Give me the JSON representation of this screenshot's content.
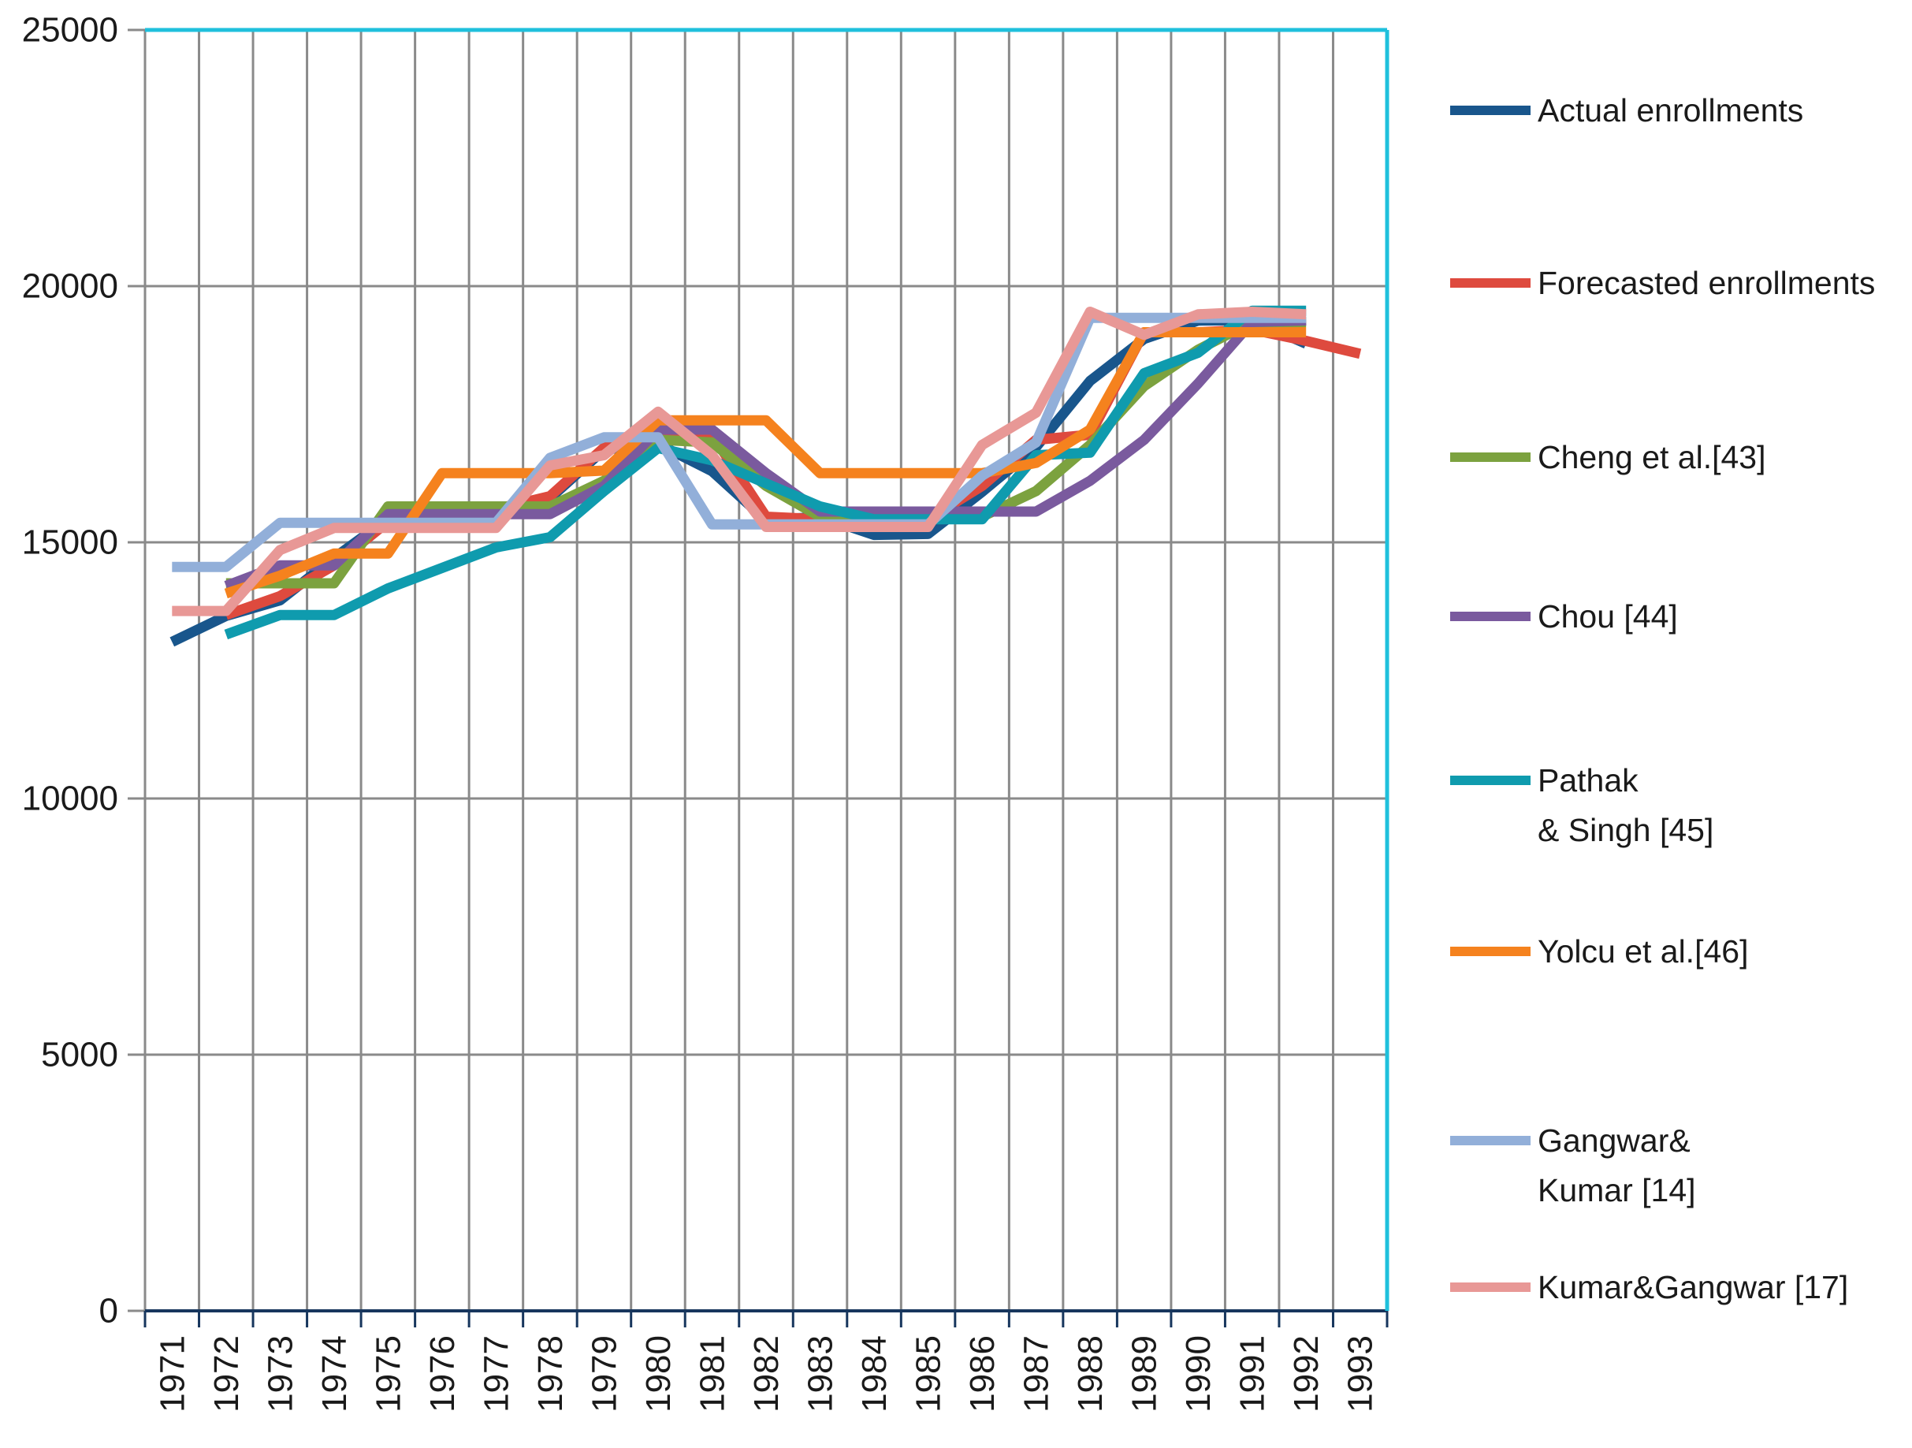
{
  "page": {
    "background": "#FFFFFF"
  },
  "y_axis": {
    "tick_labels": [
      "25000",
      "20000",
      "15000",
      "10000",
      "5000",
      "0"
    ]
  },
  "x_axis": {
    "tick_labels": [
      "1971",
      "1972",
      "1973",
      "1974",
      "1975",
      "1976",
      "1977",
      "1978",
      "1979",
      "1980",
      "1981",
      "1982",
      "1983",
      "1984",
      "1985",
      "1986",
      "1987",
      "1988",
      "1989",
      "1990",
      "1991",
      "1992",
      "1993"
    ]
  },
  "legend": [
    {
      "label": "Actual enrollments",
      "color": "#19568C"
    },
    {
      "label": "Forecasted enrollments",
      "color": "#DE4A3E"
    },
    {
      "label": "Cheng et al.[43]",
      "color": "#7CA23F"
    },
    {
      "label": "Chou [44]",
      "color": "#7A5A9E"
    },
    {
      "label": "Pathak\n& Singh  [45]",
      "color": "#0F9BAE"
    },
    {
      "label": "Yolcu et al.[46]",
      "color": "#F5821E"
    },
    {
      "label": "Gangwar&\nKumar [14]",
      "color": "#92AFD9"
    },
    {
      "label": "Kumar&Gangwar  [17]",
      "color": "#E89896"
    }
  ],
  "colors": {
    "gridline": "#8A8A8A",
    "axis_line": "#17365D",
    "plot_border": "#1FC0DC",
    "text": "#1A1A1A"
  },
  "chart_data": {
    "type": "line",
    "title": "",
    "xlabel": "",
    "ylabel": "",
    "x": [
      1971,
      1972,
      1973,
      1974,
      1975,
      1976,
      1977,
      1978,
      1979,
      1980,
      1981,
      1982,
      1983,
      1984,
      1985,
      1986,
      1987,
      1988,
      1989,
      1990,
      1991,
      1992,
      1993
    ],
    "ylim": [
      0,
      25000
    ],
    "ytick_interval": 5000,
    "grid": true,
    "legend_position": "right",
    "series": [
      {
        "name": "Actual enrollments",
        "color": "#19568C",
        "values": [
          13055,
          13563,
          13867,
          14696,
          15460,
          15311,
          15603,
          15861,
          16807,
          16919,
          16388,
          15433,
          15497,
          15145,
          15163,
          15984,
          16859,
          18150,
          18970,
          19328,
          19337,
          18876,
          null
        ]
      },
      {
        "name": "Forecasted enrollments",
        "color": "#DE4A3E",
        "values": [
          null,
          13580,
          13950,
          14550,
          15400,
          15350,
          15650,
          15900,
          16850,
          17120,
          17100,
          15500,
          15450,
          15450,
          15450,
          16100,
          17000,
          17100,
          19100,
          19100,
          19150,
          18930,
          18680
        ]
      },
      {
        "name": "Cheng et al.[43]",
        "color": "#7CA23F",
        "values": [
          null,
          14200,
          14200,
          14200,
          15700,
          15700,
          15700,
          15700,
          16200,
          17000,
          16950,
          16100,
          15500,
          15500,
          15500,
          15500,
          16000,
          16900,
          18050,
          18760,
          19300,
          19300,
          null
        ]
      },
      {
        "name": "Chou [44]",
        "color": "#7A5A9E",
        "values": [
          null,
          14150,
          14550,
          14550,
          15550,
          15550,
          15550,
          15550,
          16100,
          17200,
          17200,
          16350,
          15600,
          15600,
          15600,
          15600,
          15600,
          16200,
          17000,
          18100,
          19300,
          19330,
          null
        ]
      },
      {
        "name": "Pathak & Singh [45]",
        "color": "#0F9BAE",
        "values": [
          null,
          13200,
          13580,
          13580,
          14100,
          14500,
          14900,
          15100,
          16000,
          16840,
          16600,
          16150,
          15700,
          15450,
          15450,
          15450,
          16700,
          16750,
          18300,
          18700,
          19520,
          19520,
          null
        ]
      },
      {
        "name": "Yolcu et al.[46]",
        "color": "#F5821E",
        "values": [
          null,
          14000,
          14350,
          14780,
          14780,
          16350,
          16350,
          16350,
          16400,
          17380,
          17380,
          17380,
          16350,
          16350,
          16350,
          16350,
          16550,
          17200,
          19100,
          19100,
          19100,
          19100,
          null
        ]
      },
      {
        "name": "Gangwar& Kumar [14]",
        "color": "#92AFD9",
        "values": [
          14520,
          14520,
          15380,
          15380,
          15380,
          15380,
          15380,
          16650,
          17050,
          17050,
          15350,
          15350,
          15350,
          15350,
          15350,
          16300,
          16950,
          19380,
          19380,
          19380,
          19380,
          19380,
          null
        ]
      },
      {
        "name": "Kumar&Gangwar [17]",
        "color": "#E89896",
        "values": [
          13660,
          13660,
          14850,
          15280,
          15280,
          15280,
          15280,
          16500,
          16700,
          17550,
          16700,
          15300,
          15300,
          15300,
          15300,
          16900,
          17530,
          19500,
          19050,
          19450,
          19500,
          19450,
          null
        ]
      }
    ]
  }
}
